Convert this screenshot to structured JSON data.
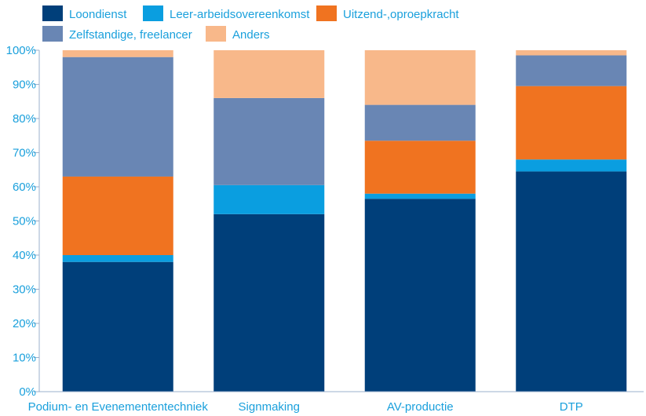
{
  "chart_data": {
    "type": "bar",
    "stacked": true,
    "categories": [
      "Podium- en Evenemententechniek",
      "Signmaking",
      "AV-productie",
      "DTP"
    ],
    "series": [
      {
        "name": "Loondienst",
        "values": [
          38,
          52,
          56.5,
          64.5
        ],
        "color": "#003f7a"
      },
      {
        "name": "Leer-arbeidsovereenkomst",
        "values": [
          2,
          8.5,
          1.5,
          3.5
        ],
        "color": "#0a9ee0"
      },
      {
        "name": "Uitzend-,oproepkracht",
        "values": [
          23,
          0,
          15.5,
          21.5
        ],
        "color": "#f07320"
      },
      {
        "name": "Zelfstandige, freelancer",
        "values": [
          35,
          25.5,
          10.5,
          9
        ],
        "color": "#6986b4"
      },
      {
        "name": "Anders",
        "values": [
          2,
          14,
          16,
          1.5
        ],
        "color": "#f8b88a"
      }
    ],
    "yticks": [
      "0%",
      "10%",
      "20%",
      "30%",
      "40%",
      "50%",
      "60%",
      "70%",
      "80%",
      "90%",
      "100%"
    ],
    "ylim": [
      0,
      100
    ],
    "grid": false,
    "legend": "top-left",
    "axis_color": "#9bb0cc"
  }
}
